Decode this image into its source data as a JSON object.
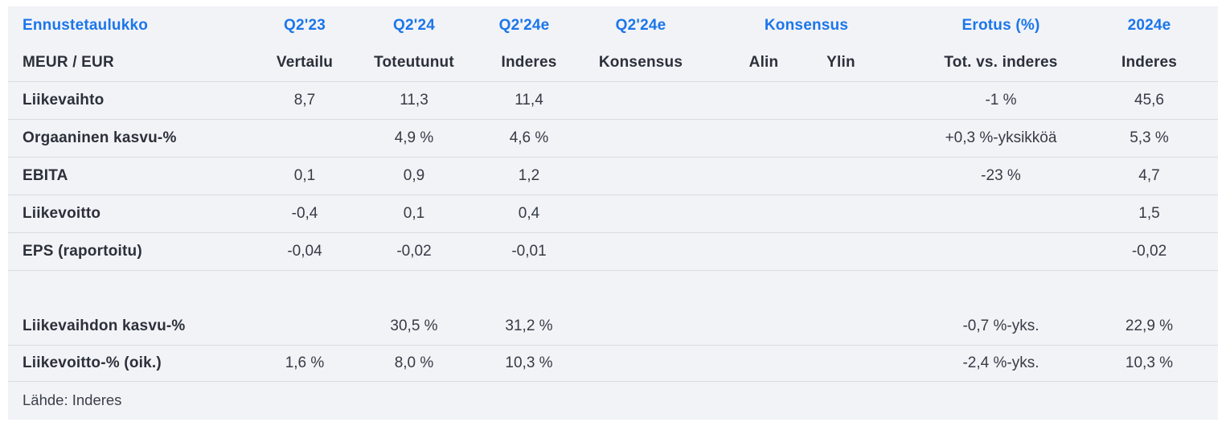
{
  "colors": {
    "accent_blue": "#1b76ea",
    "text_dark_bold": "#2b303a",
    "text_dark": "#363b45",
    "table_background": "#f2f3f7",
    "divider": "#d9dbe0",
    "page_background": "#ffffff"
  },
  "table": {
    "header_row1": {
      "title": "Ennustetaulukko",
      "c2": "Q2'23",
      "c3": "Q2'24",
      "c4": "Q2'24e",
      "c5": "Q2'24e",
      "c6": "Konsensus",
      "c7": "Erotus (%)",
      "c8": "2024e"
    },
    "header_row2": {
      "title": "MEUR / EUR",
      "c2": "Vertailu",
      "c3": "Toteutunut",
      "c4": "Inderes",
      "c5": "Konsensus",
      "c6": "Alin",
      "c7": "Ylin",
      "c8": "Tot. vs. inderes",
      "c9": "Inderes"
    },
    "rows": [
      {
        "label": "Liikevaihto",
        "cells": [
          "8,7",
          "11,3",
          "11,4",
          "",
          "",
          "",
          "-1 %",
          "45,6"
        ]
      },
      {
        "label": "Orgaaninen kasvu-%",
        "cells": [
          "",
          "4,9 %",
          "4,6 %",
          "",
          "",
          "",
          "+0,3 %-yksikköä",
          "5,3 %"
        ]
      },
      {
        "label": "EBITA",
        "cells": [
          "0,1",
          "0,9",
          "1,2",
          "",
          "",
          "",
          "-23 %",
          "4,7"
        ]
      },
      {
        "label": "Liikevoitto",
        "cells": [
          "-0,4",
          "0,1",
          "0,4",
          "",
          "",
          "",
          "",
          "1,5"
        ]
      },
      {
        "label": "EPS (raportoitu)",
        "cells": [
          "-0,04",
          "-0,02",
          "-0,01",
          "",
          "",
          "",
          "",
          "-0,02"
        ]
      },
      {
        "label": "Liikevaihdon kasvu-%",
        "cells": [
          "",
          "30,5 %",
          "31,2 %",
          "",
          "",
          "",
          "-0,7 %-yks.",
          "22,9 %"
        ]
      },
      {
        "label": "Liikevoitto-% (oik.)",
        "cells": [
          "1,6 %",
          "8,0 %",
          "10,3 %",
          "",
          "",
          "",
          "-2,4 %-yks.",
          "10,3 %"
        ]
      }
    ],
    "footer": "Lähde: Inderes"
  },
  "chart_data": {
    "type": "table",
    "title": "Ennustetaulukko (MEUR / EUR)",
    "column_groups": [
      "Ennustetaulukko",
      "Q2'23",
      "Q2'24",
      "Q2'24e",
      "Q2'24e",
      "Konsensus",
      "Konsensus",
      "Erotus (%)",
      "2024e"
    ],
    "columns": [
      "MEUR / EUR",
      "Vertailu",
      "Toteutunut",
      "Inderes",
      "Konsensus",
      "Alin",
      "Ylin",
      "Tot. vs. inderes",
      "Inderes"
    ],
    "rows": [
      [
        "Liikevaihto",
        "8,7",
        "11,3",
        "11,4",
        "",
        "",
        "",
        "-1 %",
        "45,6"
      ],
      [
        "Orgaaninen kasvu-%",
        "",
        "4,9 %",
        "4,6 %",
        "",
        "",
        "",
        "+0,3 %-yksikköä",
        "5,3 %"
      ],
      [
        "EBITA",
        "0,1",
        "0,9",
        "1,2",
        "",
        "",
        "",
        "-23 %",
        "4,7"
      ],
      [
        "Liikevoitto",
        "-0,4",
        "0,1",
        "0,4",
        "",
        "",
        "",
        "",
        "1,5"
      ],
      [
        "EPS (raportoitu)",
        "-0,04",
        "-0,02",
        "-0,01",
        "",
        "",
        "",
        "",
        "-0,02"
      ],
      [
        "Liikevaihdon kasvu-%",
        "",
        "30,5 %",
        "31,2 %",
        "",
        "",
        "",
        "-0,7 %-yks.",
        "22,9 %"
      ],
      [
        "Liikevoitto-% (oik.)",
        "1,6 %",
        "8,0 %",
        "10,3 %",
        "",
        "",
        "",
        "-2,4 %-yks.",
        "10,3 %"
      ]
    ],
    "source": "Lähde: Inderes"
  }
}
